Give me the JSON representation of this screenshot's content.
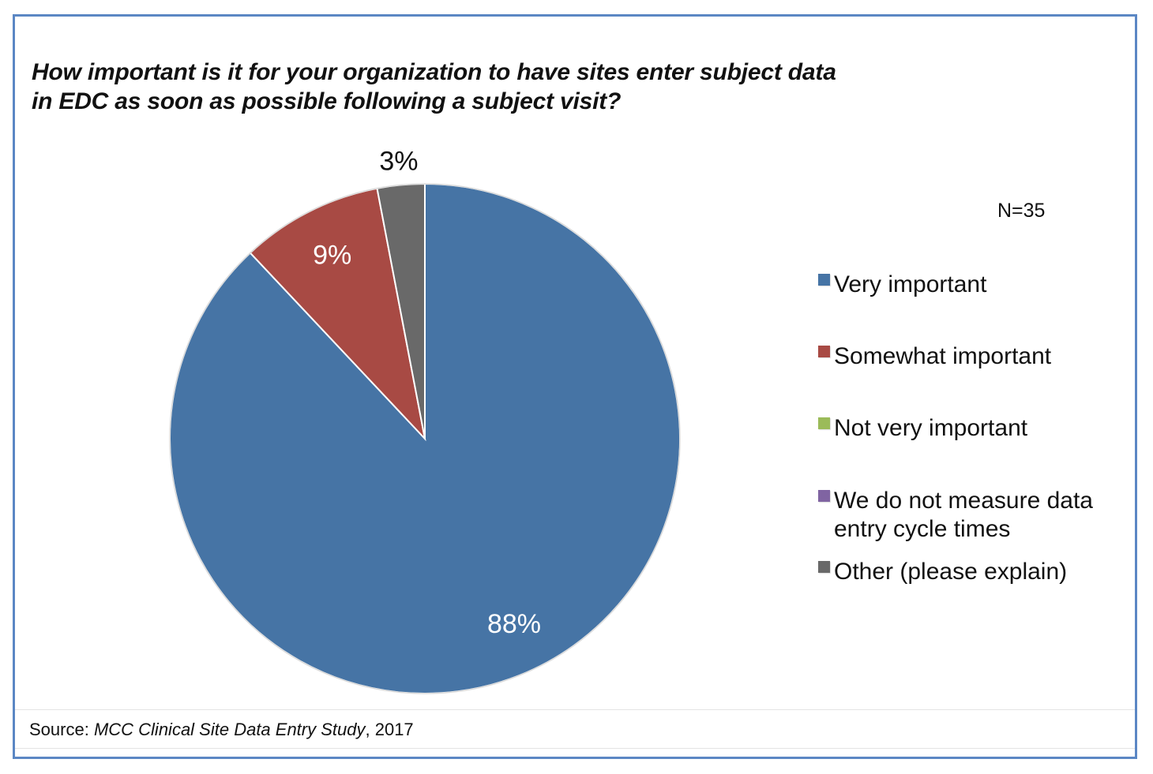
{
  "chart_data": {
    "type": "pie",
    "title": "How important is it for your organization to have sites enter subject data\nin EDC as soon as possible following a subject visit?",
    "annotation": "N=35",
    "slices": [
      {
        "name": "Very important",
        "value": 88,
        "label": "88%",
        "color": "#4674a5"
      },
      {
        "name": "Somewhat important",
        "value": 9,
        "label": "9%",
        "color": "#a84a44"
      },
      {
        "name": "Not very important",
        "value": 0,
        "label": "",
        "color": "#9bbb59"
      },
      {
        "name": "We do not measure data entry cycle times",
        "value": 0,
        "label": "",
        "color": "#8064a2"
      },
      {
        "name": "Other (please explain)",
        "value": 3,
        "label": "3%",
        "color": "#696969"
      }
    ],
    "legend": {
      "placement": "right",
      "entries": [
        {
          "label": "Very important",
          "color": "#4674a5"
        },
        {
          "label": "Somewhat important",
          "color": "#a84a44"
        },
        {
          "label": "Not very important",
          "color": "#9bbb59"
        },
        {
          "label": "We do not measure data\nentry cycle times",
          "color": "#8064a2"
        },
        {
          "label": "Other (please explain)",
          "color": "#696969"
        }
      ]
    }
  },
  "source": {
    "prefix": "Source: ",
    "study": "MCC Clinical Site Data Entry Study",
    "suffix": ", 2017"
  }
}
